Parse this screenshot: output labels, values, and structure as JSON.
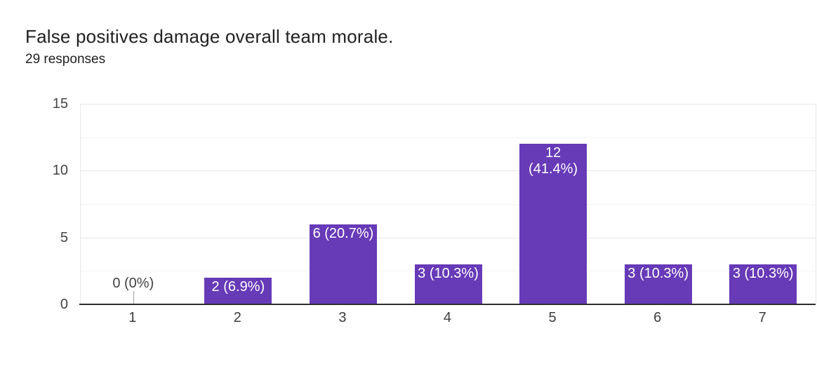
{
  "chart_data": {
    "type": "bar",
    "title": "False positives damage overall team morale.",
    "subtitle": "29 responses",
    "categories": [
      "1",
      "2",
      "3",
      "4",
      "5",
      "6",
      "7"
    ],
    "values": [
      0,
      2,
      6,
      3,
      12,
      3,
      3
    ],
    "percentages": [
      "0%",
      "6.9%",
      "20.7%",
      "10.3%",
      "41.4%",
      "10.3%",
      "10.3%"
    ],
    "bar_labels": [
      [
        "0 (0%)"
      ],
      [
        "2 (6.9%)"
      ],
      [
        "6 (20.7%)"
      ],
      [
        "3 (10.3%)"
      ],
      [
        "12",
        "(41.4%)"
      ],
      [
        "3 (10.3%)"
      ],
      [
        "3 (10.3%)"
      ]
    ],
    "xlabel": "",
    "ylabel": "",
    "ylim": [
      0,
      15
    ],
    "y_ticks": [
      0,
      5,
      10,
      15
    ],
    "y_minor_ticks": [
      2.5,
      7.5,
      12.5
    ],
    "legend": "none",
    "grid": true,
    "colors": {
      "bar": "#673ab7",
      "bar_label_text": "#ffffff",
      "zero_label_text": "#424242",
      "axis_text": "#444444",
      "gridline_major": "#e6e6e6",
      "gridline_minor": "#f3f3f3",
      "baseline": "#2e2e2e",
      "title_text": "#212121",
      "background": "#ffffff"
    }
  }
}
